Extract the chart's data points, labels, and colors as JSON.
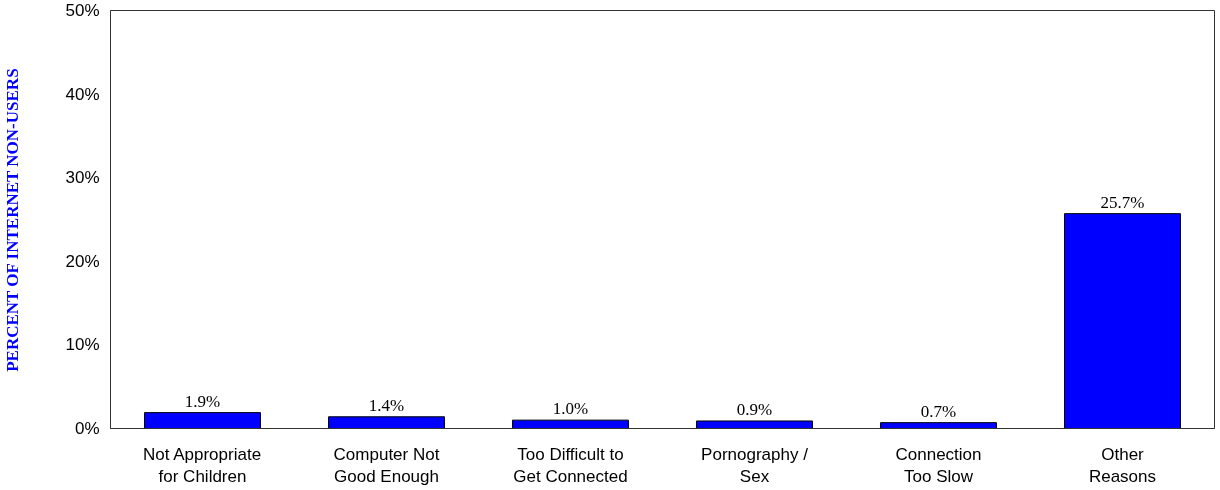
{
  "chart_data": {
    "type": "bar",
    "ylabel": "PERCENT OF INTERNET NON-USERS",
    "categories": [
      "Not Appropriate\nfor Children",
      "Computer Not\nGood Enough",
      "Too Difficult to\nGet Connected",
      "Pornography /\nSex",
      "Connection\nToo Slow",
      "Other\nReasons"
    ],
    "values": [
      1.9,
      1.4,
      1.0,
      0.9,
      0.7,
      25.7
    ],
    "value_labels": [
      "1.9%",
      "1.4%",
      "1.0%",
      "0.9%",
      "0.7%",
      "25.7%"
    ],
    "color": "#0000ff",
    "ylim": [
      0,
      50
    ],
    "yticks": [
      {
        "value": 0,
        "label": "0%"
      },
      {
        "value": 10,
        "label": "10%"
      },
      {
        "value": 20,
        "label": "20%"
      },
      {
        "value": 30,
        "label": "30%"
      },
      {
        "value": 40,
        "label": "40%"
      },
      {
        "value": 50,
        "label": "50%"
      }
    ],
    "grid": false
  }
}
